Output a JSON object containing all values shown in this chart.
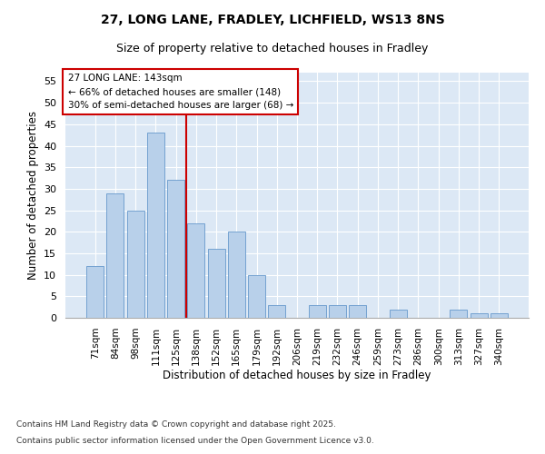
{
  "title_line1": "27, LONG LANE, FRADLEY, LICHFIELD, WS13 8NS",
  "title_line2": "Size of property relative to detached houses in Fradley",
  "xlabel": "Distribution of detached houses by size in Fradley",
  "ylabel": "Number of detached properties",
  "categories": [
    "71sqm",
    "84sqm",
    "98sqm",
    "111sqm",
    "125sqm",
    "138sqm",
    "152sqm",
    "165sqm",
    "179sqm",
    "192sqm",
    "206sqm",
    "219sqm",
    "232sqm",
    "246sqm",
    "259sqm",
    "273sqm",
    "286sqm",
    "300sqm",
    "313sqm",
    "327sqm",
    "340sqm"
  ],
  "values": [
    12,
    29,
    25,
    43,
    32,
    22,
    16,
    20,
    10,
    3,
    0,
    3,
    3,
    3,
    0,
    2,
    0,
    0,
    2,
    1,
    1
  ],
  "bar_color": "#b8d0ea",
  "bar_edge_color": "#6699cc",
  "annotation_line1": "27 LONG LANE: 143sqm",
  "annotation_line2": "← 66% of detached houses are smaller (148)",
  "annotation_line3": "30% of semi-detached houses are larger (68) →",
  "box_color": "#cc0000",
  "ylim": [
    0,
    57
  ],
  "yticks": [
    0,
    5,
    10,
    15,
    20,
    25,
    30,
    35,
    40,
    45,
    50,
    55
  ],
  "bg_color": "#dce8f5",
  "footer_line1": "Contains HM Land Registry data © Crown copyright and database right 2025.",
  "footer_line2": "Contains public sector information licensed under the Open Government Licence v3.0."
}
